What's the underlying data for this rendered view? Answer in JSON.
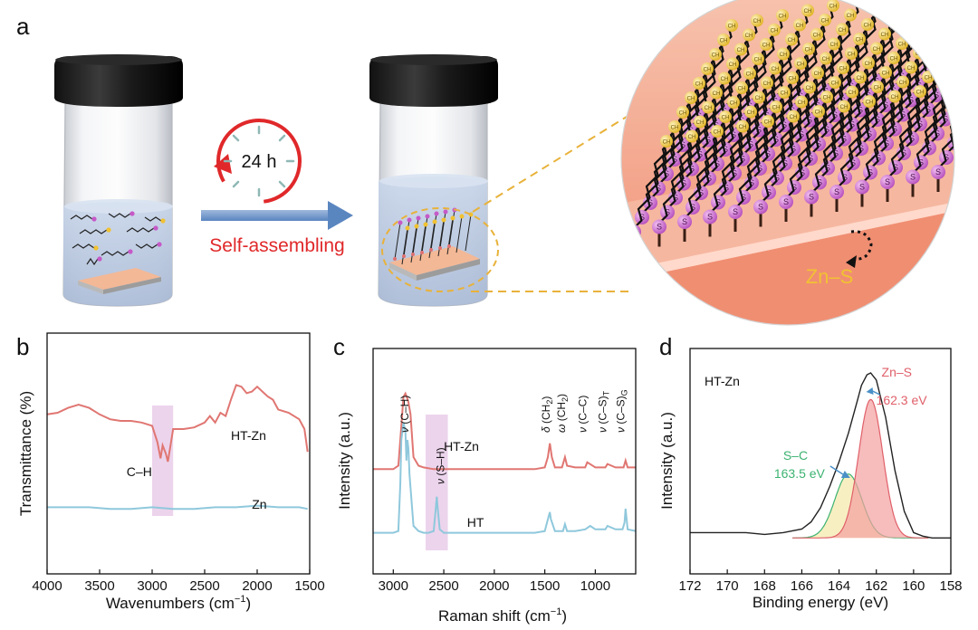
{
  "panel_labels": {
    "a": "a",
    "b": "b",
    "c": "c",
    "d": "d"
  },
  "schematic": {
    "timer_label": "24 h",
    "process_label": "Self-assembling",
    "bond_label": "Zn–S",
    "thiol_head_letter": "S",
    "tail_letter": "CH",
    "colors": {
      "red": "#e0282a",
      "blue": "#5f8fc3",
      "yellow": "#f1c232",
      "salmon": "#f3a489",
      "purple": "#c659c8"
    }
  },
  "chart_data": [
    {
      "panel": "b",
      "type": "line",
      "xlabel_main": "Wavenumbers (cm",
      "xlabel_sup": "−1",
      "xlabel_end": ")",
      "ylabel": "Transmittance (%)",
      "xlim": [
        4000,
        1500
      ],
      "x_ticks": [
        4000,
        3500,
        3000,
        2500,
        2000,
        1500
      ],
      "highlight": [
        3000,
        2800
      ],
      "highlight_color": "#dcb1dc",
      "annotation": "C–H",
      "series": [
        {
          "name": "HT-Zn",
          "color": "#e07672",
          "x": [
            4000,
            3900,
            3800,
            3700,
            3600,
            3500,
            3400,
            3300,
            3200,
            3100,
            3000,
            2950,
            2920,
            2900,
            2870,
            2850,
            2820,
            2800,
            2700,
            2600,
            2500,
            2450,
            2400,
            2350,
            2300,
            2250,
            2200,
            2150,
            2100,
            2050,
            2000,
            1950,
            1900,
            1850,
            1800,
            1700,
            1600,
            1550,
            1520
          ],
          "y": [
            0.79,
            0.8,
            0.83,
            0.85,
            0.83,
            0.79,
            0.76,
            0.75,
            0.75,
            0.74,
            0.72,
            0.62,
            0.52,
            0.6,
            0.55,
            0.5,
            0.62,
            0.7,
            0.7,
            0.71,
            0.74,
            0.78,
            0.74,
            0.8,
            0.78,
            0.88,
            0.97,
            0.96,
            0.92,
            0.93,
            0.96,
            0.93,
            0.9,
            0.88,
            0.82,
            0.8,
            0.76,
            0.7,
            0.56
          ]
        },
        {
          "name": "Zn",
          "color": "#8fc8dc",
          "x": [
            4000,
            3800,
            3600,
            3400,
            3200,
            3000,
            2800,
            2600,
            2400,
            2200,
            2000,
            1800,
            1600,
            1520
          ],
          "y": [
            0.22,
            0.22,
            0.22,
            0.21,
            0.21,
            0.22,
            0.21,
            0.21,
            0.22,
            0.22,
            0.23,
            0.22,
            0.22,
            0.21
          ]
        }
      ]
    },
    {
      "panel": "c",
      "type": "line",
      "xlabel_main": "Raman shift (cm",
      "xlabel_sup": "−1",
      "xlabel_end": ")",
      "ylabel": "Intensity (a.u.)",
      "xlim": [
        3200,
        600
      ],
      "x_ticks": [
        3000,
        2500,
        2000,
        1500,
        1000
      ],
      "highlight": [
        2680,
        2460
      ],
      "highlight_color": "#dcb1dc",
      "peak_labels": [
        {
          "x": 2850,
          "base": "ν",
          "paren": "(C–H)"
        },
        {
          "x": 2570,
          "base": "ν",
          "paren": "(S–H)"
        },
        {
          "x": 1450,
          "base": "δ",
          "paren": "(CH",
          "sub": "2",
          "close": ")"
        },
        {
          "x": 1300,
          "base": "ω",
          "paren": "(CH",
          "sub": "2",
          "close": ")"
        },
        {
          "x": 1090,
          "base": "ν",
          "paren": "(C–C)"
        },
        {
          "x": 890,
          "base": "ν",
          "paren": "(C–S)",
          "sub": "T"
        },
        {
          "x": 710,
          "base": "ν",
          "paren": "(C–S)",
          "sub": "G"
        }
      ],
      "series": [
        {
          "name": "HT-Zn",
          "color": "#e07672",
          "x": [
            3200,
            3000,
            2950,
            2920,
            2900,
            2880,
            2860,
            2850,
            2830,
            2800,
            2750,
            2700,
            2600,
            2500,
            2000,
            1600,
            1500,
            1470,
            1450,
            1430,
            1400,
            1330,
            1300,
            1280,
            1200,
            1100,
            1080,
            1000,
            900,
            880,
            800,
            720,
            700,
            680,
            600
          ],
          "y": [
            0.43,
            0.43,
            0.45,
            0.68,
            0.85,
            0.87,
            0.84,
            0.82,
            0.75,
            0.5,
            0.45,
            0.44,
            0.43,
            0.43,
            0.43,
            0.43,
            0.44,
            0.5,
            0.58,
            0.5,
            0.44,
            0.44,
            0.5,
            0.45,
            0.44,
            0.44,
            0.47,
            0.44,
            0.44,
            0.46,
            0.44,
            0.44,
            0.48,
            0.44,
            0.44
          ]
        },
        {
          "name": "HT",
          "color": "#8fc8dc",
          "x": [
            3200,
            3000,
            2950,
            2930,
            2920,
            2900,
            2880,
            2870,
            2860,
            2850,
            2840,
            2800,
            2750,
            2700,
            2650,
            2600,
            2580,
            2570,
            2560,
            2540,
            2500,
            2000,
            1600,
            1500,
            1460,
            1450,
            1440,
            1400,
            1320,
            1300,
            1280,
            1200,
            1100,
            1050,
            1000,
            900,
            880,
            800,
            730,
            710,
            700,
            680,
            600
          ],
          "y": [
            0.06,
            0.06,
            0.07,
            0.35,
            0.6,
            0.7,
            0.65,
            0.48,
            0.6,
            0.55,
            0.4,
            0.1,
            0.07,
            0.06,
            0.06,
            0.07,
            0.2,
            0.27,
            0.2,
            0.08,
            0.06,
            0.06,
            0.06,
            0.07,
            0.16,
            0.18,
            0.14,
            0.07,
            0.07,
            0.11,
            0.07,
            0.07,
            0.08,
            0.1,
            0.08,
            0.08,
            0.1,
            0.08,
            0.08,
            0.12,
            0.2,
            0.08,
            0.07
          ]
        }
      ]
    },
    {
      "panel": "d",
      "type": "area",
      "xlabel": "Binding energy (eV)",
      "ylabel": "Intensity (a.u.)",
      "xlim": [
        172,
        158
      ],
      "x_ticks": [
        172,
        170,
        168,
        166,
        164,
        162,
        160,
        158
      ],
      "sample_label": "HT-Zn",
      "baseline": 0.07,
      "measured": {
        "color": "#222222",
        "x": [
          172,
          171,
          170,
          169,
          168,
          167,
          166,
          165.5,
          165,
          164.5,
          164,
          163.5,
          163,
          162.8,
          162.5,
          162.3,
          162,
          161.5,
          161,
          160.5,
          160,
          159.5,
          159,
          158.5,
          158
        ],
        "y": [
          0.1,
          0.1,
          0.1,
          0.1,
          0.09,
          0.1,
          0.12,
          0.16,
          0.24,
          0.36,
          0.5,
          0.66,
          0.85,
          0.93,
          0.99,
          1.0,
          0.96,
          0.75,
          0.45,
          0.22,
          0.1,
          0.08,
          0.07,
          0.07,
          0.07
        ]
      },
      "components": [
        {
          "name": "S–C",
          "label": "S–C",
          "value_label": "163.5 eV",
          "center": 163.5,
          "height": 0.36,
          "sigma": 0.72,
          "color": "#3cb371",
          "fill": "#f4e8a8"
        },
        {
          "name": "Zn–S",
          "label": "Zn–S",
          "value_label": "162.3 eV",
          "center": 162.3,
          "height": 0.78,
          "sigma": 0.65,
          "color": "#e0606a",
          "fill": "#f3a0a0"
        }
      ]
    }
  ]
}
